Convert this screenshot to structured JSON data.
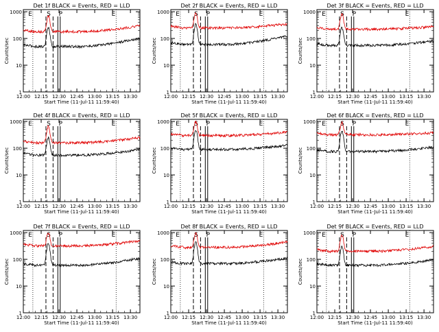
{
  "figure": {
    "xlabel_template": "Start Time (11-Jul-11 11:59:40)",
    "ylabel": "Counts/sec",
    "x_ticks": [
      "12:00",
      "12:15",
      "12:30",
      "12:45",
      "13:00",
      "13:15",
      "13:30"
    ],
    "y_ticks": [
      "1",
      "10",
      "100",
      "1000"
    ],
    "colors": {
      "events": "#000000",
      "lld": "#e00000",
      "axes": "#000000"
    },
    "markers": [
      "E",
      "S",
      "P",
      "E"
    ]
  },
  "chart_data": [
    {
      "type": "line",
      "title": "Det 1f BLACK = Events, RED = LLD",
      "xlabel": "Start Time (11-Jul-11 11:59:40)",
      "ylabel": "Counts/sec",
      "y_scale": "log",
      "ylim": [
        1,
        1200
      ],
      "xlim": [
        "12:00",
        "13:38"
      ],
      "series": [
        {
          "name": "Events",
          "color": "#000000",
          "baseline": 50,
          "peak": 250,
          "end": 100
        },
        {
          "name": "LLD",
          "color": "#e00000",
          "baseline": 180,
          "peak": 700,
          "end": 300
        }
      ]
    },
    {
      "type": "line",
      "title": "Det 2f BLACK = Events, RED = LLD",
      "xlabel": "Start Time (11-Jul-11 11:59:40)",
      "ylabel": "Counts/sec",
      "y_scale": "log",
      "ylim": [
        1,
        1200
      ],
      "xlim": [
        "12:00",
        "13:38"
      ],
      "series": [
        {
          "name": "Events",
          "color": "#000000",
          "baseline": 60,
          "peak": 350,
          "end": 120
        },
        {
          "name": "LLD",
          "color": "#e00000",
          "baseline": 250,
          "peak": 900,
          "end": 350
        }
      ]
    },
    {
      "type": "line",
      "title": "Det 3f BLACK = Events, RED = LLD",
      "xlabel": "Start Time (11-Jul-11 11:59:40)",
      "ylabel": "Counts/sec",
      "y_scale": "log",
      "ylim": [
        1,
        1200
      ],
      "xlim": [
        "12:00",
        "13:38"
      ],
      "series": [
        {
          "name": "Events",
          "color": "#000000",
          "baseline": 55,
          "peak": 250,
          "end": 80
        },
        {
          "name": "LLD",
          "color": "#e00000",
          "baseline": 220,
          "peak": 800,
          "end": 280
        }
      ]
    },
    {
      "type": "line",
      "title": "Det 4f BLACK = Events, RED = LLD",
      "xlabel": "Start Time (11-Jul-11 11:59:40)",
      "ylabel": "Counts/sec",
      "y_scale": "log",
      "ylim": [
        1,
        1200
      ],
      "xlim": [
        "12:00",
        "13:38"
      ],
      "series": [
        {
          "name": "Events",
          "color": "#000000",
          "baseline": 55,
          "peak": 250,
          "end": 90
        },
        {
          "name": "LLD",
          "color": "#e00000",
          "baseline": 160,
          "peak": 650,
          "end": 250
        }
      ]
    },
    {
      "type": "line",
      "title": "Det 5f BLACK = Events, RED = LLD",
      "xlabel": "Start Time (11-Jul-11 11:59:40)",
      "ylabel": "Counts/sec",
      "y_scale": "log",
      "ylim": [
        1,
        1200
      ],
      "xlim": [
        "12:00",
        "13:38"
      ],
      "series": [
        {
          "name": "Events",
          "color": "#000000",
          "baseline": 90,
          "peak": 500,
          "end": 130
        },
        {
          "name": "LLD",
          "color": "#e00000",
          "baseline": 300,
          "peak": 1000,
          "end": 400
        }
      ]
    },
    {
      "type": "line",
      "title": "Det 6f BLACK = Events, RED = LLD",
      "xlabel": "Start Time (11-Jul-11 11:59:40)",
      "ylabel": "Counts/sec",
      "y_scale": "log",
      "ylim": [
        1,
        1200
      ],
      "xlim": [
        "12:00",
        "13:38"
      ],
      "series": [
        {
          "name": "Events",
          "color": "#000000",
          "baseline": 75,
          "peak": 450,
          "end": 110
        },
        {
          "name": "LLD",
          "color": "#e00000",
          "baseline": 320,
          "peak": 900,
          "end": 380
        }
      ]
    },
    {
      "type": "line",
      "title": "Det 7f BLACK = Events, RED = LLD",
      "xlabel": "Start Time (11-Jul-11 11:59:40)",
      "ylabel": "Counts/sec",
      "y_scale": "log",
      "ylim": [
        1,
        1200
      ],
      "xlim": [
        "12:00",
        "13:38"
      ],
      "series": [
        {
          "name": "Events",
          "color": "#000000",
          "baseline": 60,
          "peak": 400,
          "end": 110
        },
        {
          "name": "LLD",
          "color": "#e00000",
          "baseline": 320,
          "peak": 1000,
          "end": 500
        }
      ]
    },
    {
      "type": "line",
      "title": "Det 8f BLACK = Events, RED = LLD",
      "xlabel": "Start Time (11-Jul-11 11:59:40)",
      "ylabel": "Counts/sec",
      "y_scale": "log",
      "ylim": [
        1,
        1200
      ],
      "xlim": [
        "12:00",
        "13:38"
      ],
      "series": [
        {
          "name": "Events",
          "color": "#000000",
          "baseline": 70,
          "peak": 450,
          "end": 110
        },
        {
          "name": "LLD",
          "color": "#e00000",
          "baseline": 280,
          "peak": 1000,
          "end": 450
        }
      ]
    },
    {
      "type": "line",
      "title": "Det 9f BLACK = Events, RED = LLD",
      "xlabel": "Start Time (11-Jul-11 11:59:40)",
      "ylabel": "Counts/sec",
      "y_scale": "log",
      "ylim": [
        1,
        1200
      ],
      "xlim": [
        "12:00",
        "13:38"
      ],
      "series": [
        {
          "name": "Events",
          "color": "#000000",
          "baseline": 60,
          "peak": 300,
          "end": 95
        },
        {
          "name": "LLD",
          "color": "#e00000",
          "baseline": 200,
          "peak": 800,
          "end": 300
        }
      ]
    }
  ]
}
